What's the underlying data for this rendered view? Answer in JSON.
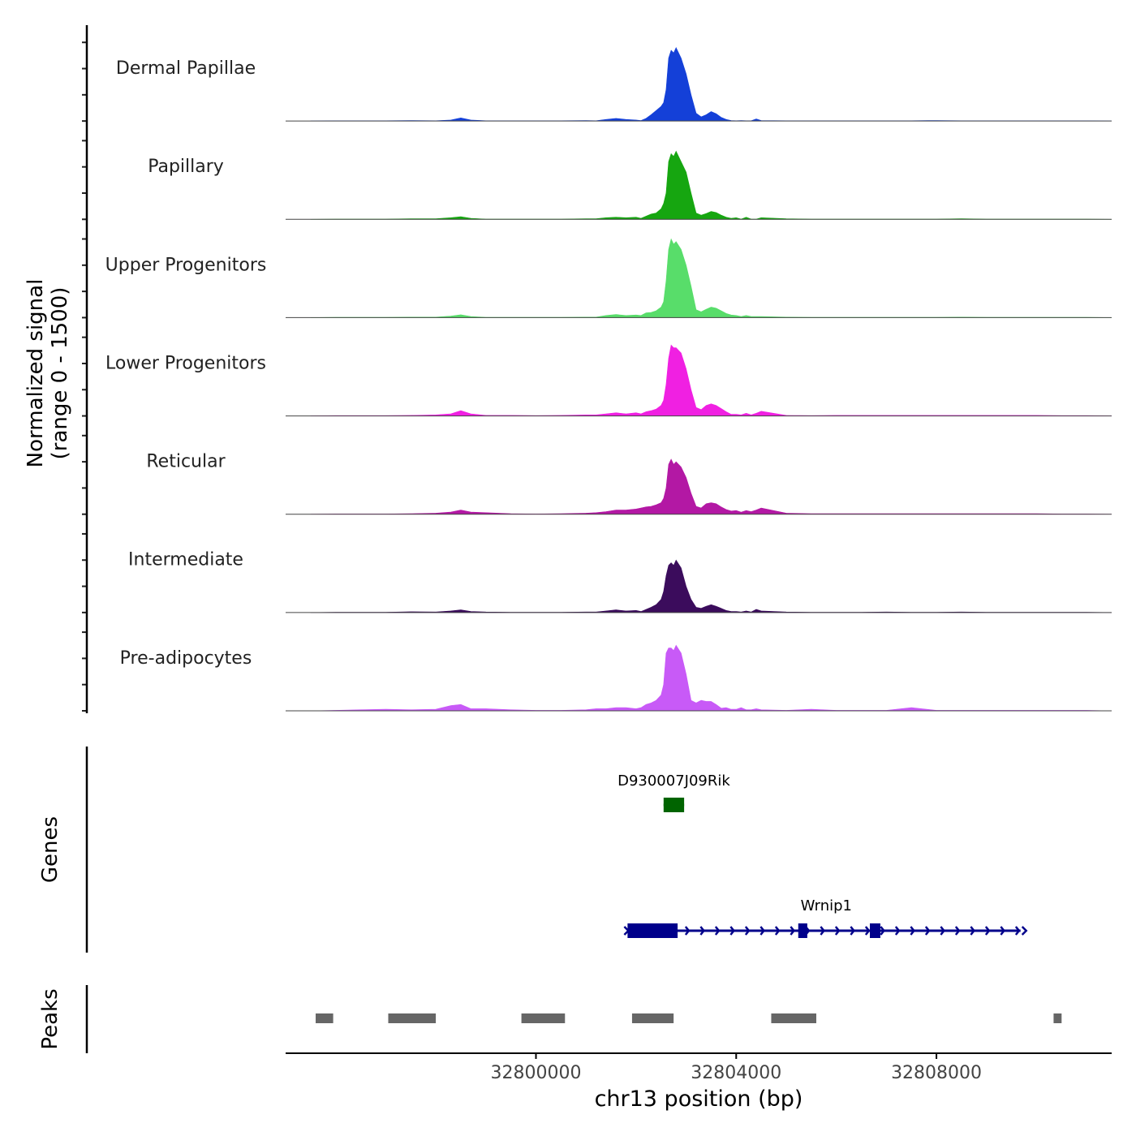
{
  "chart_data": {
    "type": "area",
    "title": "",
    "xlabel": "chr13 position (bp)",
    "ylabel_line1": "Normalized signal",
    "ylabel_line2": "(range 0 - 1500)",
    "y_range": [
      0,
      1500
    ],
    "x_range": [
      32795000,
      32811500
    ],
    "x_ticks": [
      32800000,
      32804000,
      32808000
    ],
    "x_tick_labels": [
      "32800000",
      "32804000",
      "32808000"
    ],
    "tracks_label_genes": "Genes",
    "tracks_label_peaks": "Peaks",
    "series": [
      {
        "name": "Dermal Papillae",
        "color": "#1440d8",
        "x": [
          32795500,
          32796000,
          32796500,
          32797000,
          32797500,
          32798000,
          32798300,
          32798500,
          32798700,
          32799000,
          32799500,
          32800000,
          32800500,
          32801000,
          32801200,
          32801400,
          32801600,
          32801800,
          32802000,
          32802100,
          32802200,
          32802300,
          32802400,
          32802500,
          32802550,
          32802600,
          32802650,
          32802700,
          32802750,
          32802800,
          32802900,
          32803000,
          32803100,
          32803200,
          32803300,
          32803400,
          32803500,
          32803600,
          32803700,
          32803800,
          32803900,
          32804000,
          32804100,
          32804200,
          32804300,
          32804400,
          32804500,
          32805000,
          32805500,
          32806000,
          32806500,
          32807000,
          32807500,
          32808000,
          32808500,
          32809000,
          32809500,
          32810000,
          32810500,
          32811000,
          32811500
        ],
        "y": [
          0,
          5,
          5,
          5,
          10,
          5,
          20,
          60,
          20,
          5,
          5,
          5,
          5,
          10,
          5,
          30,
          50,
          30,
          20,
          10,
          50,
          120,
          200,
          280,
          350,
          600,
          1200,
          1350,
          1300,
          1400,
          1200,
          900,
          500,
          150,
          80,
          120,
          180,
          140,
          70,
          30,
          10,
          5,
          10,
          5,
          5,
          40,
          10,
          5,
          5,
          5,
          5,
          5,
          5,
          10,
          5,
          5,
          5,
          5,
          5,
          5,
          0
        ]
      },
      {
        "name": "Papillary",
        "color": "#16a610",
        "x": [
          32795500,
          32796000,
          32796500,
          32797000,
          32797500,
          32798000,
          32798300,
          32798500,
          32798700,
          32799000,
          32799500,
          32800000,
          32800500,
          32801000,
          32801200,
          32801400,
          32801600,
          32801800,
          32802000,
          32802100,
          32802200,
          32802300,
          32802400,
          32802500,
          32802550,
          32802600,
          32802650,
          32802700,
          32802750,
          32802800,
          32802900,
          32803000,
          32803100,
          32803200,
          32803300,
          32803400,
          32803500,
          32803600,
          32803700,
          32803800,
          32803900,
          32804000,
          32804100,
          32804200,
          32804300,
          32804400,
          32804500,
          32805000,
          32805500,
          32806000,
          32806500,
          32807000,
          32807500,
          32808000,
          32808500,
          32809000,
          32809500,
          32810000,
          32810500,
          32811000,
          32811500
        ],
        "y": [
          0,
          5,
          5,
          5,
          10,
          10,
          30,
          50,
          20,
          5,
          5,
          5,
          5,
          10,
          10,
          30,
          40,
          30,
          40,
          20,
          60,
          100,
          120,
          200,
          300,
          500,
          1100,
          1250,
          1200,
          1300,
          1100,
          900,
          500,
          120,
          80,
          110,
          150,
          130,
          80,
          40,
          20,
          30,
          5,
          40,
          5,
          5,
          30,
          10,
          5,
          5,
          5,
          5,
          5,
          5,
          10,
          5,
          5,
          5,
          5,
          5,
          0
        ]
      },
      {
        "name": "Upper Progenitors",
        "color": "#58dd6a",
        "x": [
          32795500,
          32796000,
          32796500,
          32797000,
          32797500,
          32798000,
          32798300,
          32798500,
          32798700,
          32799000,
          32799500,
          32800000,
          32800500,
          32801000,
          32801200,
          32801400,
          32801600,
          32801800,
          32802000,
          32802100,
          32802200,
          32802300,
          32802400,
          32802500,
          32802550,
          32802600,
          32802650,
          32802700,
          32802750,
          32802800,
          32802900,
          32803000,
          32803100,
          32803200,
          32803300,
          32803400,
          32803500,
          32803600,
          32803700,
          32803800,
          32803900,
          32804000,
          32804100,
          32804200,
          32804300,
          32804400,
          32804500,
          32805000,
          32805500,
          32806000,
          32806500,
          32807000,
          32807500,
          32808000,
          32808500,
          32809000,
          32809500,
          32810000,
          32810500,
          32811000,
          32811500
        ],
        "y": [
          0,
          5,
          5,
          5,
          10,
          10,
          30,
          55,
          20,
          5,
          5,
          5,
          5,
          10,
          10,
          40,
          60,
          40,
          50,
          40,
          90,
          100,
          130,
          200,
          300,
          700,
          1300,
          1500,
          1400,
          1450,
          1300,
          1000,
          600,
          150,
          110,
          160,
          200,
          180,
          130,
          80,
          50,
          40,
          20,
          40,
          20,
          20,
          20,
          10,
          5,
          5,
          5,
          5,
          5,
          5,
          10,
          5,
          5,
          5,
          5,
          5,
          0
        ]
      },
      {
        "name": "Lower Progenitors",
        "color": "#f020e2",
        "x": [
          32795500,
          32796000,
          32796500,
          32797000,
          32797500,
          32798000,
          32798300,
          32798500,
          32798700,
          32799000,
          32799500,
          32800000,
          32800500,
          32801000,
          32801200,
          32801400,
          32801600,
          32801800,
          32802000,
          32802100,
          32802200,
          32802300,
          32802400,
          32802500,
          32802550,
          32802600,
          32802650,
          32802700,
          32802750,
          32802800,
          32802900,
          32803000,
          32803100,
          32803200,
          32803300,
          32803400,
          32803500,
          32803600,
          32803700,
          32803800,
          32803900,
          32804000,
          32804100,
          32804200,
          32804300,
          32804400,
          32804500,
          32805000,
          32805500,
          32806000,
          32806500,
          32807000,
          32807500,
          32808000,
          32808500,
          32809000,
          32809500,
          32810000,
          32810500,
          32811000,
          32811500
        ],
        "y": [
          0,
          5,
          5,
          5,
          10,
          20,
          40,
          100,
          40,
          10,
          10,
          5,
          10,
          20,
          20,
          40,
          60,
          40,
          60,
          40,
          80,
          100,
          130,
          200,
          300,
          600,
          1100,
          1350,
          1300,
          1300,
          1200,
          900,
          500,
          160,
          120,
          200,
          230,
          200,
          140,
          80,
          30,
          30,
          20,
          50,
          20,
          50,
          90,
          10,
          5,
          10,
          10,
          10,
          10,
          10,
          10,
          10,
          10,
          10,
          5,
          5,
          0
        ]
      },
      {
        "name": "Reticular",
        "color": "#b318a4",
        "x": [
          32795500,
          32796000,
          32796500,
          32797000,
          32797500,
          32798000,
          32798300,
          32798500,
          32798700,
          32799000,
          32799500,
          32800000,
          32800500,
          32801000,
          32801200,
          32801400,
          32801600,
          32801800,
          32802000,
          32802100,
          32802200,
          32802300,
          32802400,
          32802500,
          32802550,
          32802600,
          32802650,
          32802700,
          32802750,
          32802800,
          32802900,
          32803000,
          32803100,
          32803200,
          32803300,
          32803400,
          32803500,
          32803600,
          32803700,
          32803800,
          32803900,
          32804000,
          32804100,
          32804200,
          32804300,
          32804400,
          32804500,
          32805000,
          32805500,
          32806000,
          32806500,
          32807000,
          32807500,
          32808000,
          32808500,
          32809000,
          32809500,
          32810000,
          32810500,
          32811000,
          32811500
        ],
        "y": [
          0,
          5,
          5,
          5,
          10,
          20,
          40,
          80,
          40,
          30,
          10,
          5,
          10,
          20,
          30,
          50,
          80,
          80,
          100,
          120,
          140,
          150,
          180,
          220,
          300,
          500,
          950,
          1050,
          950,
          1000,
          900,
          700,
          400,
          150,
          120,
          200,
          220,
          200,
          140,
          90,
          60,
          70,
          40,
          70,
          50,
          80,
          120,
          20,
          10,
          10,
          10,
          10,
          10,
          10,
          10,
          10,
          10,
          10,
          5,
          5,
          0
        ]
      },
      {
        "name": "Intermediate",
        "color": "#3b0c5c",
        "x": [
          32795500,
          32796000,
          32796500,
          32797000,
          32797500,
          32798000,
          32798300,
          32798500,
          32798700,
          32799000,
          32799500,
          32800000,
          32800500,
          32801000,
          32801200,
          32801400,
          32801600,
          32801800,
          32802000,
          32802100,
          32802200,
          32802300,
          32802400,
          32802500,
          32802550,
          32802600,
          32802650,
          32802700,
          32802750,
          32802800,
          32802900,
          32803000,
          32803100,
          32803200,
          32803300,
          32803400,
          32803500,
          32803600,
          32803700,
          32803800,
          32803900,
          32804000,
          32804100,
          32804200,
          32804300,
          32804400,
          32804500,
          32805000,
          32805500,
          32806000,
          32806500,
          32807000,
          32807500,
          32808000,
          32808500,
          32809000,
          32809500,
          32810000,
          32810500,
          32811000,
          32811500
        ],
        "y": [
          0,
          5,
          5,
          5,
          15,
          10,
          30,
          50,
          20,
          10,
          5,
          5,
          5,
          10,
          10,
          30,
          50,
          30,
          40,
          20,
          60,
          100,
          150,
          250,
          400,
          700,
          900,
          950,
          900,
          1000,
          850,
          500,
          250,
          100,
          80,
          120,
          150,
          120,
          80,
          40,
          20,
          20,
          10,
          30,
          10,
          60,
          30,
          10,
          5,
          5,
          5,
          10,
          5,
          5,
          10,
          5,
          5,
          5,
          5,
          5,
          0
        ]
      },
      {
        "name": "Pre-adipocytes",
        "color": "#c85af7",
        "x": [
          32795500,
          32796000,
          32796500,
          32797000,
          32797500,
          32798000,
          32798300,
          32798500,
          32798700,
          32799000,
          32799500,
          32800000,
          32800500,
          32801000,
          32801200,
          32801400,
          32801600,
          32801800,
          32802000,
          32802100,
          32802200,
          32802300,
          32802400,
          32802500,
          32802550,
          32802600,
          32802650,
          32802700,
          32802750,
          32802800,
          32802900,
          32803000,
          32803100,
          32803200,
          32803300,
          32803400,
          32803500,
          32803600,
          32803700,
          32803800,
          32803900,
          32804000,
          32804100,
          32804200,
          32804300,
          32804400,
          32804500,
          32805000,
          32805500,
          32806000,
          32806500,
          32807000,
          32807500,
          32808000,
          32808500,
          32809000,
          32809500,
          32810000,
          32810500,
          32811000,
          32811500
        ],
        "y": [
          0,
          10,
          20,
          30,
          20,
          30,
          100,
          120,
          40,
          40,
          20,
          10,
          10,
          20,
          40,
          40,
          60,
          60,
          40,
          60,
          120,
          150,
          200,
          300,
          500,
          1100,
          1200,
          1200,
          1150,
          1250,
          1100,
          700,
          200,
          150,
          200,
          180,
          180,
          120,
          50,
          60,
          30,
          30,
          60,
          20,
          20,
          40,
          20,
          10,
          30,
          10,
          10,
          10,
          60,
          10,
          10,
          10,
          10,
          10,
          10,
          10,
          0
        ]
      }
    ],
    "genes": [
      {
        "name": "D930007J09Rik",
        "color": "#006400",
        "start": 32802550,
        "end": 32802960,
        "strand": "none",
        "exons": [
          [
            32802550,
            32802960
          ]
        ]
      },
      {
        "name": "Wrnip1",
        "color": "#00008b",
        "start": 32801830,
        "end": 32809680,
        "strand": "+",
        "exons": [
          [
            32801830,
            32802830
          ],
          [
            32805240,
            32805420
          ],
          [
            32806670,
            32806880
          ]
        ]
      }
    ],
    "peaks": [
      [
        32795600,
        32795950
      ],
      [
        32797050,
        32798000
      ],
      [
        32799710,
        32800580
      ],
      [
        32801920,
        32802750
      ],
      [
        32804700,
        32805600
      ],
      [
        32810340,
        32810500
      ]
    ]
  }
}
